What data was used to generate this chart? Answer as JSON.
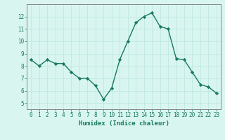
{
  "x": [
    0,
    1,
    2,
    3,
    4,
    5,
    6,
    7,
    8,
    9,
    10,
    11,
    12,
    13,
    14,
    15,
    16,
    17,
    18,
    19,
    20,
    21,
    22,
    23
  ],
  "y": [
    8.5,
    8.0,
    8.5,
    8.2,
    8.2,
    7.5,
    7.0,
    7.0,
    6.4,
    5.3,
    6.2,
    8.5,
    10.0,
    11.5,
    12.0,
    12.3,
    11.2,
    11.0,
    8.6,
    8.5,
    7.5,
    6.5,
    6.3,
    5.8
  ],
  "line_color": "#1a7a5e",
  "marker": "D",
  "marker_size": 2.2,
  "bg_color": "#d8f5f0",
  "grid_color": "#c0e8e0",
  "xlabel": "Humidex (Indice chaleur)",
  "ylim": [
    4.5,
    13.0
  ],
  "xlim": [
    -0.5,
    23.5
  ],
  "yticks": [
    5,
    6,
    7,
    8,
    9,
    10,
    11,
    12
  ],
  "xtick_labels": [
    "0",
    "1",
    "2",
    "3",
    "4",
    "5",
    "6",
    "7",
    "8",
    "9",
    "10",
    "11",
    "12",
    "13",
    "14",
    "15",
    "16",
    "17",
    "18",
    "19",
    "20",
    "21",
    "22",
    "23"
  ],
  "tick_color": "#1a7a5e",
  "axis_color": "#888888",
  "label_fontsize": 6.5,
  "tick_fontsize": 5.5,
  "linewidth": 1.0
}
